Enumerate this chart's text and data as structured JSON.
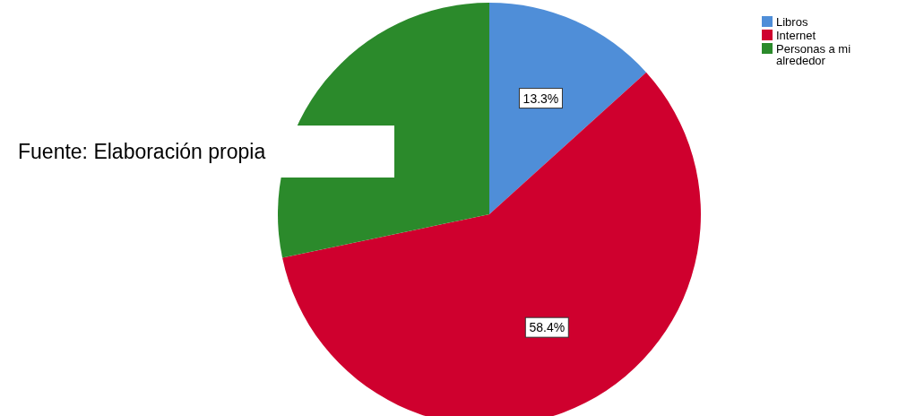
{
  "chart_data": {
    "type": "pie",
    "categories": [
      "Libros",
      "Internet",
      "Personas a mi alrededor"
    ],
    "values": [
      13.3,
      58.4,
      28.3
    ],
    "colors": [
      "#4f8ed8",
      "#cf002e",
      "#2b8a2b"
    ],
    "value_labels": [
      "13.3%",
      "58.4%",
      null
    ],
    "legend": "top right",
    "annotations": [
      "Fuente: Elaboración propia"
    ]
  }
}
